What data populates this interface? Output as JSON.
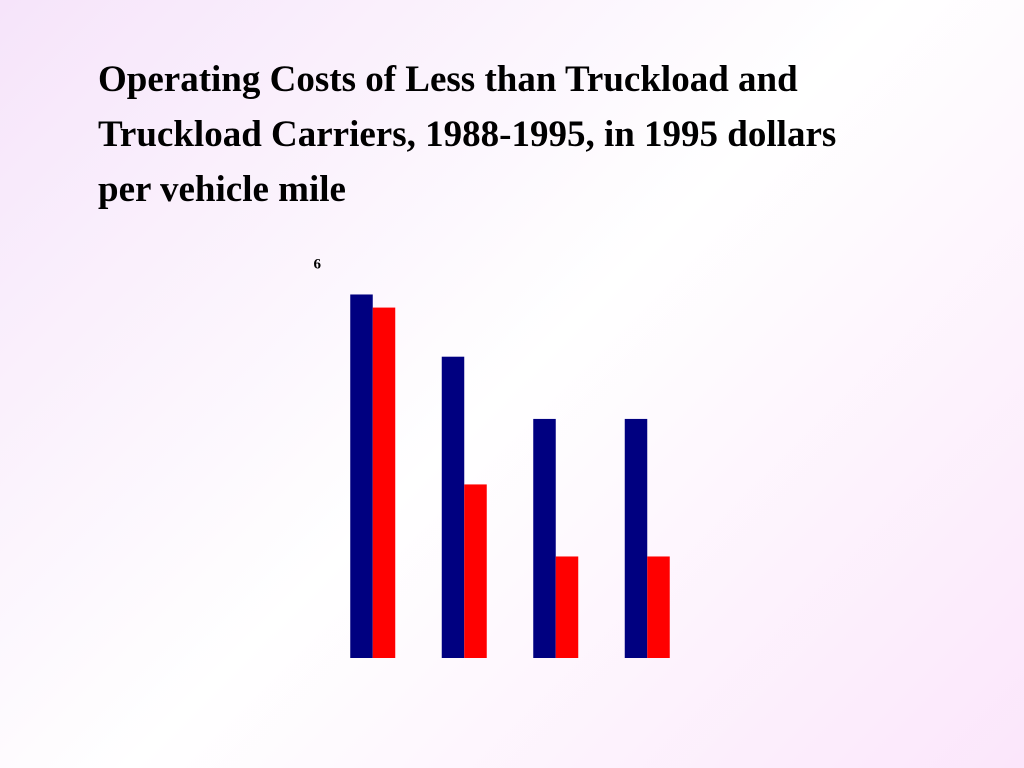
{
  "chart_data": {
    "type": "bar",
    "title": "Operating Costs of Less than Truckload and Truckload Carriers, 1988-1995, in 1995 dollars per vehicle mile",
    "categories": [
      null,
      null,
      null,
      null
    ],
    "series": [
      {
        "color": "#000080",
        "values": [
          5.55,
          4.6,
          3.65,
          3.65
        ]
      },
      {
        "color": "#ff0000",
        "values": [
          5.35,
          2.65,
          1.55,
          1.55
        ]
      }
    ],
    "ylim": [
      0,
      6
    ],
    "yticks": [
      6
    ],
    "grid": false
  }
}
